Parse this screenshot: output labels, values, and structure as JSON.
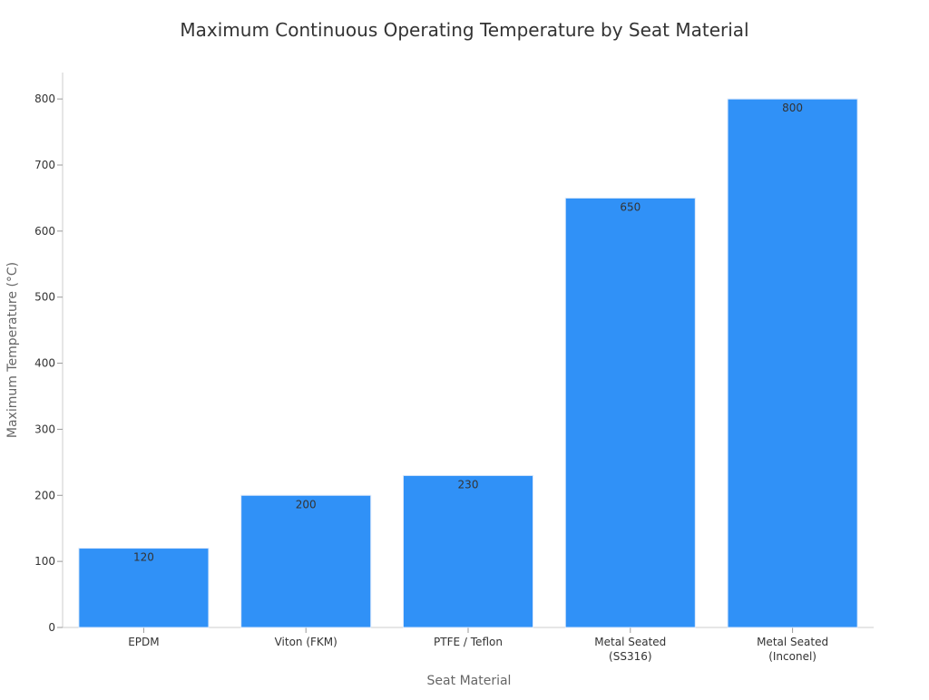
{
  "chart_data": {
    "type": "bar",
    "title": "Maximum Continuous Operating Temperature by Seat Material",
    "xlabel": "Seat Material",
    "ylabel": "Maximum Temperature (°C)",
    "categories": [
      [
        "EPDM"
      ],
      [
        "Viton (FKM)"
      ],
      [
        "PTFE / Teflon"
      ],
      [
        "Metal Seated",
        "(SS316)"
      ],
      [
        "Metal Seated",
        "(Inconel)"
      ]
    ],
    "values": [
      120,
      200,
      230,
      650,
      800
    ],
    "value_labels": [
      "120",
      "200",
      "230",
      "650",
      "800"
    ],
    "ylim": [
      0,
      840
    ],
    "yticks": [
      0,
      100,
      200,
      300,
      400,
      500,
      600,
      700,
      800
    ],
    "grid": false,
    "legend": "none",
    "bar_color": "#3091f7",
    "bar_edge_color": "#dbe9fb",
    "text_color": "#333333"
  }
}
